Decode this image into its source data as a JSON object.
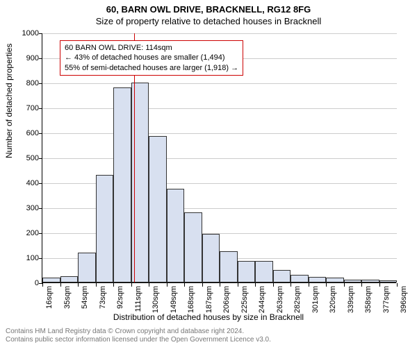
{
  "header": {
    "title_main": "60, BARN OWL DRIVE, BRACKNELL, RG12 8FG",
    "title_sub": "Size of property relative to detached houses in Bracknell"
  },
  "chart": {
    "type": "histogram",
    "y_axis_label": "Number of detached properties",
    "x_axis_label": "Distribution of detached houses by size in Bracknell",
    "ylim": [
      0,
      1000
    ],
    "ytick_step": 100,
    "yticks": [
      0,
      100,
      200,
      300,
      400,
      500,
      600,
      700,
      800,
      900,
      1000
    ],
    "xticks": [
      "16sqm",
      "35sqm",
      "54sqm",
      "73sqm",
      "92sqm",
      "111sqm",
      "130sqm",
      "149sqm",
      "168sqm",
      "187sqm",
      "206sqm",
      "225sqm",
      "244sqm",
      "263sqm",
      "282sqm",
      "301sqm",
      "320sqm",
      "339sqm",
      "358sqm",
      "377sqm",
      "396sqm"
    ],
    "bar_color": "#d8e0f0",
    "bar_border_color": "#333333",
    "grid_color": "#cccccc",
    "background_color": "#ffffff",
    "axis_color": "#000000",
    "label_fontsize": 12,
    "tick_fontsize": 11,
    "title_fontsize": 13,
    "bars": [
      {
        "x_start": 16,
        "x_end": 35,
        "value": 20
      },
      {
        "x_start": 35,
        "x_end": 54,
        "value": 25
      },
      {
        "x_start": 54,
        "x_end": 73,
        "value": 120
      },
      {
        "x_start": 73,
        "x_end": 92,
        "value": 430
      },
      {
        "x_start": 92,
        "x_end": 111,
        "value": 780
      },
      {
        "x_start": 111,
        "x_end": 130,
        "value": 800
      },
      {
        "x_start": 130,
        "x_end": 149,
        "value": 585
      },
      {
        "x_start": 149,
        "x_end": 168,
        "value": 375
      },
      {
        "x_start": 168,
        "x_end": 187,
        "value": 280
      },
      {
        "x_start": 187,
        "x_end": 206,
        "value": 195
      },
      {
        "x_start": 206,
        "x_end": 225,
        "value": 125
      },
      {
        "x_start": 225,
        "x_end": 244,
        "value": 85
      },
      {
        "x_start": 244,
        "x_end": 263,
        "value": 85
      },
      {
        "x_start": 263,
        "x_end": 282,
        "value": 50
      },
      {
        "x_start": 282,
        "x_end": 301,
        "value": 30
      },
      {
        "x_start": 301,
        "x_end": 320,
        "value": 22
      },
      {
        "x_start": 320,
        "x_end": 339,
        "value": 20
      },
      {
        "x_start": 339,
        "x_end": 358,
        "value": 10
      },
      {
        "x_start": 358,
        "x_end": 377,
        "value": 12
      },
      {
        "x_start": 377,
        "x_end": 396,
        "value": 8
      }
    ],
    "x_domain": [
      16,
      396
    ],
    "marker": {
      "x_value": 114,
      "color": "#cc0000",
      "width": 1.5
    },
    "annotation": {
      "line1": "60 BARN OWL DRIVE: 114sqm",
      "line2": "← 43% of detached houses are smaller (1,494)",
      "line3": "55% of semi-detached houses are larger (1,918) →",
      "border_color": "#cc0000",
      "background_color": "#ffffff",
      "fontsize": 11,
      "position_x": 25,
      "position_y": 10
    }
  },
  "footer": {
    "line1": "Contains HM Land Registry data © Crown copyright and database right 2024.",
    "line2": "Contains public sector information licensed under the Open Government Licence v3.0."
  }
}
